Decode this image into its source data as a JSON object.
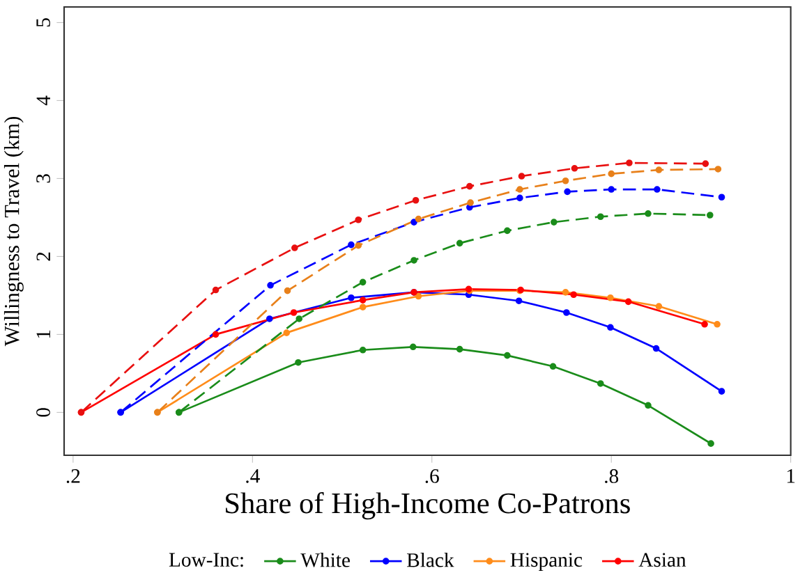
{
  "chart_data": {
    "type": "line",
    "xlabel": "Share of High-Income Co-Patrons",
    "ylabel": "Willingness to Travel (km)",
    "legend_title": "Low-Inc:",
    "legend": "bottom",
    "marker": "circle",
    "grid": false,
    "xlim": [
      0.19,
      1.0
    ],
    "ylim": [
      -0.55,
      5.2
    ],
    "xticks": [
      {
        "value": 0.2,
        "label": ".2"
      },
      {
        "value": 0.4,
        "label": ".4"
      },
      {
        "value": 0.6,
        "label": ".6"
      },
      {
        "value": 0.8,
        "label": ".8"
      },
      {
        "value": 1,
        "label": "1"
      }
    ],
    "yticks": [
      0,
      1,
      2,
      3,
      4,
      5
    ],
    "series": [
      {
        "name": "White",
        "color": "#1a8c1a",
        "line_style": "solid",
        "x": [
          0.318,
          0.451,
          0.523,
          0.579,
          0.631,
          0.684,
          0.735,
          0.788,
          0.841,
          0.911
        ],
        "values": [
          0,
          0.64,
          0.8,
          0.84,
          0.81,
          0.73,
          0.59,
          0.37,
          0.09,
          -0.4
        ]
      },
      {
        "name": "Black",
        "color": "#0000ff",
        "line_style": "solid",
        "x": [
          0.253,
          0.419,
          0.51,
          0.58,
          0.641,
          0.697,
          0.75,
          0.799,
          0.85,
          0.923
        ],
        "values": [
          0,
          1.2,
          1.47,
          1.54,
          1.51,
          1.43,
          1.28,
          1.09,
          0.82,
          0.27
        ]
      },
      {
        "name": "Hispanic",
        "color": "#ff8c1a",
        "line_style": "solid",
        "x": [
          0.294,
          0.438,
          0.523,
          0.585,
          0.642,
          0.698,
          0.749,
          0.799,
          0.853,
          0.918
        ],
        "values": [
          0,
          1.02,
          1.35,
          1.49,
          1.56,
          1.56,
          1.54,
          1.47,
          1.36,
          1.13
        ]
      },
      {
        "name": "Asian",
        "color": "#ff0000",
        "line_style": "solid",
        "x": [
          0.209,
          0.359,
          0.446,
          0.523,
          0.58,
          0.641,
          0.699,
          0.758,
          0.819,
          0.904
        ],
        "values": [
          0,
          1.0,
          1.28,
          1.44,
          1.54,
          1.58,
          1.57,
          1.51,
          1.42,
          1.13
        ]
      },
      {
        "color": "#1a8c1a",
        "line_style": "dashed",
        "x": [
          0.318,
          0.452,
          0.523,
          0.58,
          0.631,
          0.684,
          0.736,
          0.788,
          0.841,
          0.91
        ],
        "values": [
          0,
          1.2,
          1.67,
          1.95,
          2.17,
          2.33,
          2.44,
          2.51,
          2.55,
          2.53
        ]
      },
      {
        "color": "#0000ff",
        "line_style": "dashed",
        "x": [
          0.253,
          0.42,
          0.51,
          0.58,
          0.642,
          0.698,
          0.751,
          0.8,
          0.851,
          0.923
        ],
        "values": [
          0,
          1.63,
          2.15,
          2.44,
          2.63,
          2.75,
          2.83,
          2.86,
          2.86,
          2.76
        ]
      },
      {
        "color": "#e8801a",
        "line_style": "dashed",
        "x": [
          0.294,
          0.439,
          0.518,
          0.585,
          0.643,
          0.698,
          0.749,
          0.8,
          0.853,
          0.919
        ],
        "values": [
          0,
          1.56,
          2.14,
          2.48,
          2.69,
          2.86,
          2.97,
          3.06,
          3.11,
          3.12
        ]
      },
      {
        "color": "#e81010",
        "line_style": "dashed",
        "x": [
          0.209,
          0.359,
          0.447,
          0.518,
          0.582,
          0.642,
          0.7,
          0.759,
          0.82,
          0.905
        ],
        "values": [
          0,
          1.57,
          2.11,
          2.47,
          2.72,
          2.9,
          3.03,
          3.13,
          3.2,
          3.19
        ]
      }
    ]
  }
}
